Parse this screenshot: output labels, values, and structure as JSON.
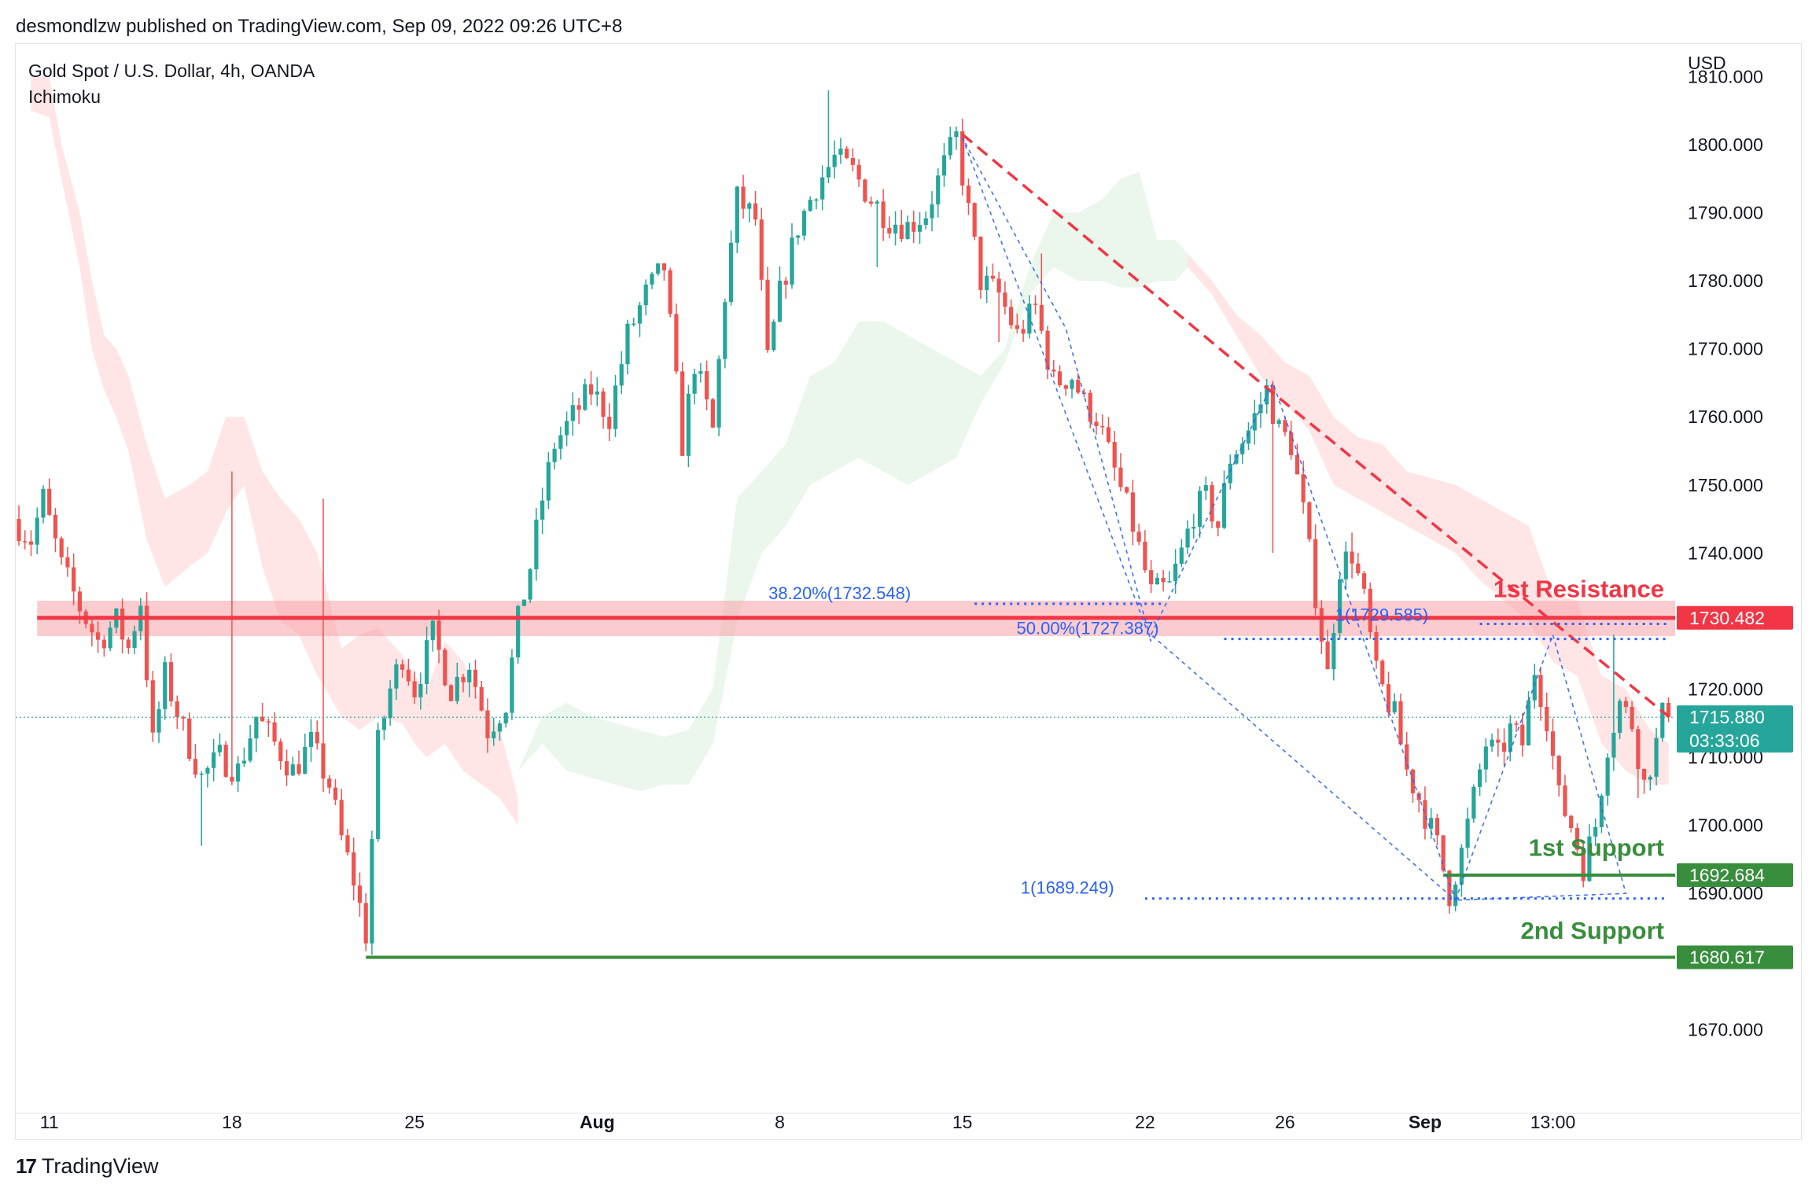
{
  "header": {
    "published": "desmondlzw published on TradingView.com, Sep 09, 2022 09:26 UTC+8"
  },
  "footer": {
    "logo_icon": "tradingview-logo-icon",
    "brand": "TradingView"
  },
  "chart_data": {
    "type": "candlestick",
    "title": "Gold Spot / U.S. Dollar, 4h, OANDA",
    "indicator": "Ichimoku",
    "currency": "USD",
    "ylim": [
      1662,
      1812
    ],
    "yticks": [
      1670,
      1680,
      1690,
      1700,
      1710,
      1720,
      1730,
      1740,
      1750,
      1760,
      1770,
      1780,
      1790,
      1800,
      1810
    ],
    "xticks": [
      {
        "label": "11",
        "i": 5,
        "bold": false
      },
      {
        "label": "18",
        "i": 35,
        "bold": false
      },
      {
        "label": "25",
        "i": 65,
        "bold": false
      },
      {
        "label": "Aug",
        "i": 95,
        "bold": true
      },
      {
        "label": "8",
        "i": 125,
        "bold": false
      },
      {
        "label": "15",
        "i": 155,
        "bold": false
      },
      {
        "label": "22",
        "i": 185,
        "bold": false
      },
      {
        "label": "26",
        "i": 208,
        "bold": false
      },
      {
        "label": "Sep",
        "i": 231,
        "bold": true
      },
      {
        "label": "13:00",
        "i": 252,
        "bold": false
      }
    ],
    "n_bars": 272,
    "colors": {
      "up": "#26a69a",
      "down": "#ef5350",
      "resistance": "#f23645",
      "support": "#388e3c",
      "fib": "#2962ff",
      "cloud_bull": "#e8f5e9",
      "cloud_bear": "#ffe0e0",
      "current": "#26a69a"
    },
    "anchors": [
      [
        0,
        1745
      ],
      [
        3,
        1742
      ],
      [
        5,
        1748
      ],
      [
        8,
        1738
      ],
      [
        11,
        1732
      ],
      [
        14,
        1727
      ],
      [
        17,
        1730
      ],
      [
        19,
        1726
      ],
      [
        21,
        1733
      ],
      [
        23,
        1712
      ],
      [
        25,
        1722
      ],
      [
        28,
        1714
      ],
      [
        31,
        1707
      ],
      [
        34,
        1710
      ],
      [
        37,
        1708
      ],
      [
        40,
        1716
      ],
      [
        43,
        1712
      ],
      [
        46,
        1708
      ],
      [
        49,
        1712
      ],
      [
        52,
        1706
      ],
      [
        54,
        1698
      ],
      [
        56,
        1692
      ],
      [
        58,
        1684
      ],
      [
        60,
        1712
      ],
      [
        62,
        1720
      ],
      [
        64,
        1725
      ],
      [
        66,
        1720
      ],
      [
        69,
        1728
      ],
      [
        72,
        1720
      ],
      [
        75,
        1724
      ],
      [
        78,
        1714
      ],
      [
        81,
        1718
      ],
      [
        83,
        1730
      ],
      [
        85,
        1738
      ],
      [
        87,
        1748
      ],
      [
        89,
        1756
      ],
      [
        92,
        1760
      ],
      [
        95,
        1764
      ],
      [
        98,
        1760
      ],
      [
        101,
        1772
      ],
      [
        104,
        1778
      ],
      [
        107,
        1782
      ],
      [
        110,
        1756
      ],
      [
        112,
        1768
      ],
      [
        115,
        1758
      ],
      [
        117,
        1778
      ],
      [
        119,
        1792
      ],
      [
        122,
        1789
      ],
      [
        124,
        1768
      ],
      [
        126,
        1778
      ],
      [
        129,
        1788
      ],
      [
        132,
        1794
      ],
      [
        135,
        1798
      ],
      [
        138,
        1796
      ],
      [
        141,
        1792
      ],
      [
        144,
        1789
      ],
      [
        147,
        1788
      ],
      [
        150,
        1790
      ],
      [
        153,
        1797
      ],
      [
        155,
        1801
      ],
      [
        157,
        1790
      ],
      [
        159,
        1780
      ],
      [
        162,
        1778
      ],
      [
        165,
        1772
      ],
      [
        168,
        1776
      ],
      [
        171,
        1765
      ],
      [
        174,
        1766
      ],
      [
        176,
        1762
      ],
      [
        178,
        1760
      ],
      [
        181,
        1752
      ],
      [
        184,
        1744
      ],
      [
        187,
        1734
      ],
      [
        190,
        1735
      ],
      [
        192,
        1740
      ],
      [
        194,
        1746
      ],
      [
        196,
        1748
      ],
      [
        198,
        1744
      ],
      [
        200,
        1754
      ],
      [
        203,
        1758
      ],
      [
        206,
        1764
      ],
      [
        208,
        1758
      ],
      [
        210,
        1756
      ],
      [
        212,
        1746
      ],
      [
        214,
        1734
      ],
      [
        216,
        1722
      ],
      [
        218,
        1738
      ],
      [
        220,
        1740
      ],
      [
        222,
        1733
      ],
      [
        224,
        1722
      ],
      [
        227,
        1716
      ],
      [
        229,
        1708
      ],
      [
        231,
        1704
      ],
      [
        234,
        1697
      ],
      [
        236,
        1690
      ],
      [
        238,
        1696
      ],
      [
        240,
        1704
      ],
      [
        242,
        1712
      ],
      [
        244,
        1710
      ],
      [
        246,
        1714
      ],
      [
        248,
        1712
      ],
      [
        250,
        1723
      ],
      [
        252,
        1716
      ],
      [
        254,
        1704
      ],
      [
        256,
        1700
      ],
      [
        258,
        1694
      ],
      [
        260,
        1700
      ],
      [
        262,
        1712
      ],
      [
        264,
        1718
      ],
      [
        266,
        1715
      ],
      [
        268,
        1706
      ],
      [
        270,
        1712
      ],
      [
        271,
        1716
      ]
    ],
    "high_spikes": [
      [
        35,
        1752
      ],
      [
        50,
        1748
      ],
      [
        86,
        1736
      ],
      [
        133,
        1808
      ],
      [
        154,
        1802
      ],
      [
        168,
        1784
      ],
      [
        219,
        1743
      ],
      [
        262,
        1728
      ]
    ],
    "low_spikes": [
      [
        30,
        1697
      ],
      [
        57,
        1681.5
      ],
      [
        141,
        1782
      ],
      [
        161,
        1771
      ],
      [
        206,
        1740
      ],
      [
        237,
        1689.5
      ],
      [
        257,
        1691
      ],
      [
        266,
        1704
      ]
    ],
    "ichimoku_cloud": [
      [
        [
          2,
          1810
        ],
        [
          5,
          1810
        ],
        [
          7,
          1800
        ],
        [
          10,
          1790
        ],
        [
          12,
          1780
        ],
        [
          14,
          1772
        ],
        [
          16,
          1770
        ],
        [
          18,
          1766
        ],
        [
          21,
          1756
        ],
        [
          24,
          1748
        ],
        [
          28,
          1750
        ],
        [
          31,
          1752
        ],
        [
          34,
          1760
        ],
        [
          37,
          1760
        ],
        [
          40,
          1752
        ],
        [
          43,
          1748
        ],
        [
          46,
          1745
        ],
        [
          49,
          1740
        ],
        [
          53,
          1726
        ],
        [
          56,
          1728
        ],
        [
          59,
          1729
        ],
        [
          63,
          1725
        ],
        [
          65,
          1722
        ],
        [
          67,
          1720
        ],
        [
          70,
          1727
        ],
        [
          73,
          1724
        ],
        [
          76,
          1718
        ],
        [
          79,
          1714
        ],
        [
          82,
          1704
        ]
      ],
      [
        [
          2,
          1805
        ],
        [
          5,
          1804
        ],
        [
          7,
          1795
        ],
        [
          10,
          1782
        ],
        [
          12,
          1770
        ],
        [
          14,
          1764
        ],
        [
          16,
          1760
        ],
        [
          18,
          1755
        ],
        [
          21,
          1742
        ],
        [
          24,
          1735
        ],
        [
          28,
          1738
        ],
        [
          31,
          1740
        ],
        [
          34,
          1746
        ],
        [
          37,
          1750
        ],
        [
          40,
          1738
        ],
        [
          43,
          1730
        ],
        [
          46,
          1728
        ],
        [
          49,
          1722
        ],
        [
          53,
          1716
        ],
        [
          56,
          1714
        ],
        [
          59,
          1716
        ],
        [
          63,
          1715
        ],
        [
          65,
          1712
        ],
        [
          67,
          1710
        ],
        [
          70,
          1712
        ],
        [
          73,
          1708
        ],
        [
          76,
          1706
        ],
        [
          79,
          1704
        ],
        [
          82,
          1700
        ]
      ],
      [
        [
          82,
          1708
        ],
        [
          86,
          1716
        ],
        [
          90,
          1718
        ],
        [
          94,
          1716
        ],
        [
          98,
          1715
        ],
        [
          102,
          1714
        ],
        [
          106,
          1713
        ],
        [
          110,
          1714
        ],
        [
          114,
          1720
        ],
        [
          118,
          1748
        ],
        [
          122,
          1752
        ],
        [
          126,
          1756
        ],
        [
          130,
          1766
        ],
        [
          134,
          1768
        ],
        [
          138,
          1774
        ],
        [
          142,
          1774
        ],
        [
          146,
          1772
        ],
        [
          150,
          1770
        ],
        [
          154,
          1768
        ],
        [
          158,
          1766
        ],
        [
          162,
          1770
        ],
        [
          166,
          1782
        ],
        [
          170,
          1790
        ],
        [
          174,
          1790
        ],
        [
          178,
          1792
        ],
        [
          181,
          1795
        ],
        [
          184,
          1796
        ],
        [
          187,
          1786
        ],
        [
          190,
          1786
        ],
        [
          192,
          1784
        ]
      ],
      [
        [
          82,
          1708
        ],
        [
          86,
          1712
        ],
        [
          90,
          1708
        ],
        [
          94,
          1707
        ],
        [
          98,
          1706
        ],
        [
          102,
          1705
        ],
        [
          106,
          1706
        ],
        [
          110,
          1706
        ],
        [
          114,
          1712
        ],
        [
          118,
          1730
        ],
        [
          122,
          1740
        ],
        [
          126,
          1744
        ],
        [
          130,
          1750
        ],
        [
          134,
          1752
        ],
        [
          138,
          1754
        ],
        [
          142,
          1752
        ],
        [
          146,
          1750
        ],
        [
          150,
          1752
        ],
        [
          154,
          1754
        ],
        [
          158,
          1762
        ],
        [
          162,
          1768
        ],
        [
          166,
          1778
        ],
        [
          170,
          1782
        ],
        [
          174,
          1780
        ],
        [
          178,
          1780
        ],
        [
          181,
          1779
        ],
        [
          184,
          1779
        ],
        [
          187,
          1780
        ],
        [
          190,
          1780
        ],
        [
          192,
          1782
        ]
      ],
      [
        [
          192,
          1784
        ],
        [
          196,
          1780
        ],
        [
          200,
          1775
        ],
        [
          204,
          1772
        ],
        [
          208,
          1768
        ],
        [
          212,
          1766
        ],
        [
          216,
          1760
        ],
        [
          220,
          1757
        ],
        [
          224,
          1756
        ],
        [
          228,
          1752
        ],
        [
          232,
          1751
        ],
        [
          236,
          1750
        ],
        [
          240,
          1748
        ],
        [
          244,
          1746
        ],
        [
          248,
          1744
        ],
        [
          252,
          1734
        ],
        [
          256,
          1733
        ],
        [
          260,
          1722
        ],
        [
          264,
          1720
        ],
        [
          268,
          1714
        ],
        [
          271,
          1712
        ]
      ],
      [
        [
          192,
          1782
        ],
        [
          196,
          1778
        ],
        [
          200,
          1772
        ],
        [
          204,
          1766
        ],
        [
          208,
          1762
        ],
        [
          212,
          1758
        ],
        [
          216,
          1750
        ],
        [
          220,
          1748
        ],
        [
          224,
          1746
        ],
        [
          228,
          1744
        ],
        [
          232,
          1742
        ],
        [
          236,
          1740
        ],
        [
          240,
          1736
        ],
        [
          244,
          1733
        ],
        [
          248,
          1730
        ],
        [
          252,
          1724
        ],
        [
          256,
          1722
        ],
        [
          260,
          1712
        ],
        [
          264,
          1708
        ],
        [
          268,
          1706
        ],
        [
          271,
          1706
        ]
      ]
    ],
    "resistance_zone": [
      1727.8,
      1733.0
    ],
    "levels": [
      {
        "name": "1st Resistance",
        "value": 1730.482,
        "label": "1730.482",
        "color": "#f23645",
        "from_i": 3
      },
      {
        "name": "1st Support",
        "value": 1692.684,
        "label": "1692.684",
        "color": "#388e3c",
        "from_i": 234
      },
      {
        "name": "2nd Support",
        "value": 1680.617,
        "label": "1680.617",
        "color": "#388e3c",
        "from_i": 57
      }
    ],
    "current_price": {
      "value": 1715.88,
      "label": "1715.880",
      "countdown": "03:33:06"
    },
    "trendline": [
      [
        155,
        1801.5
      ],
      [
        204,
        1765
      ],
      [
        271,
        1716
      ]
    ],
    "fib_lines": [
      {
        "text": "38.20%(1732.548)",
        "value": 1732.548,
        "from_i": 157,
        "to_i": 188
      },
      {
        "text": "50.00%(1727.387)",
        "value": 1727.387,
        "from_i": 198,
        "to_i": 271
      },
      {
        "text": "1(1729.585)",
        "value": 1729.585,
        "from_i": 240,
        "to_i": 271
      },
      {
        "text": "1(1689.249)",
        "value": 1689.249,
        "from_i": 185,
        "to_i": 271
      }
    ],
    "fib_triangles": [
      [
        [
          155,
          1801
        ],
        [
          186,
          1727
        ],
        [
          172,
          1773
        ]
      ],
      [
        [
          186,
          1728
        ],
        [
          206,
          1765
        ],
        [
          236,
          1689
        ]
      ],
      [
        [
          236,
          1689
        ],
        [
          252,
          1728
        ],
        [
          264,
          1690
        ]
      ]
    ],
    "labels": [
      {
        "text": "1st Resistance",
        "value": 1733.5,
        "color": "#f23645"
      },
      {
        "text": "1st Support",
        "value": 1695.5,
        "color": "#388e3c"
      },
      {
        "text": "2nd Support",
        "value": 1683.3,
        "color": "#388e3c"
      }
    ]
  }
}
